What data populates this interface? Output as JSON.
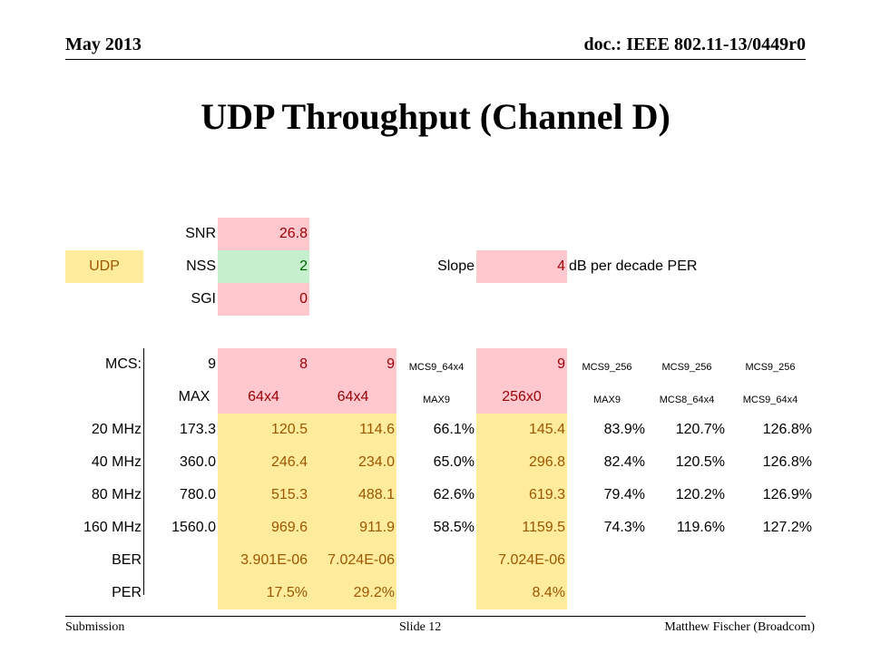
{
  "header": {
    "date": "May 2013",
    "doc": "doc.: IEEE 802.11-13/0449r0"
  },
  "title": "UDP Throughput (Channel D)",
  "params": {
    "udp_label": "UDP",
    "snr_label": "SNR",
    "snr_value": "26.8",
    "nss_label": "NSS",
    "nss_value": "2",
    "sgi_label": "SGI",
    "sgi_value": "0",
    "slope_label": "Slope",
    "slope_value": "4",
    "slope_unit": "dB per decade PER"
  },
  "table": {
    "mcs_label": "MCS:",
    "mcs_row": [
      "9",
      "8",
      "9",
      "MCS9_64x4",
      "9",
      "MCS9_256",
      "MCS9_256",
      "MCS9_256"
    ],
    "sub_row": [
      "MAX",
      "64x4",
      "64x4",
      "MAX9",
      "256x0",
      "MAX9",
      "MCS8_64x4",
      "MCS9_64x4"
    ],
    "rows": [
      {
        "label": "20 MHz",
        "values": [
          "173.3",
          "120.5",
          "114.6",
          "66.1%",
          "145.4",
          "83.9%",
          "120.7%",
          "126.8%"
        ]
      },
      {
        "label": "40 MHz",
        "values": [
          "360.0",
          "246.4",
          "234.0",
          "65.0%",
          "296.8",
          "82.4%",
          "120.5%",
          "126.8%"
        ]
      },
      {
        "label": "80 MHz",
        "values": [
          "780.0",
          "515.3",
          "488.1",
          "62.6%",
          "619.3",
          "79.4%",
          "120.2%",
          "126.9%"
        ]
      },
      {
        "label": "160 MHz",
        "values": [
          "1560.0",
          "969.6",
          "911.9",
          "58.5%",
          "1159.5",
          "74.3%",
          "119.6%",
          "127.2%"
        ]
      }
    ],
    "ber": {
      "label": "BER",
      "values": [
        "3.901E-06",
        "7.024E-06",
        "7.024E-06"
      ]
    },
    "per": {
      "label": "PER",
      "values": [
        "17.5%",
        "29.2%",
        "8.4%"
      ]
    }
  },
  "footer": {
    "left": "Submission",
    "center": "Slide 12",
    "right": "Matthew Fischer (Broadcom)"
  }
}
